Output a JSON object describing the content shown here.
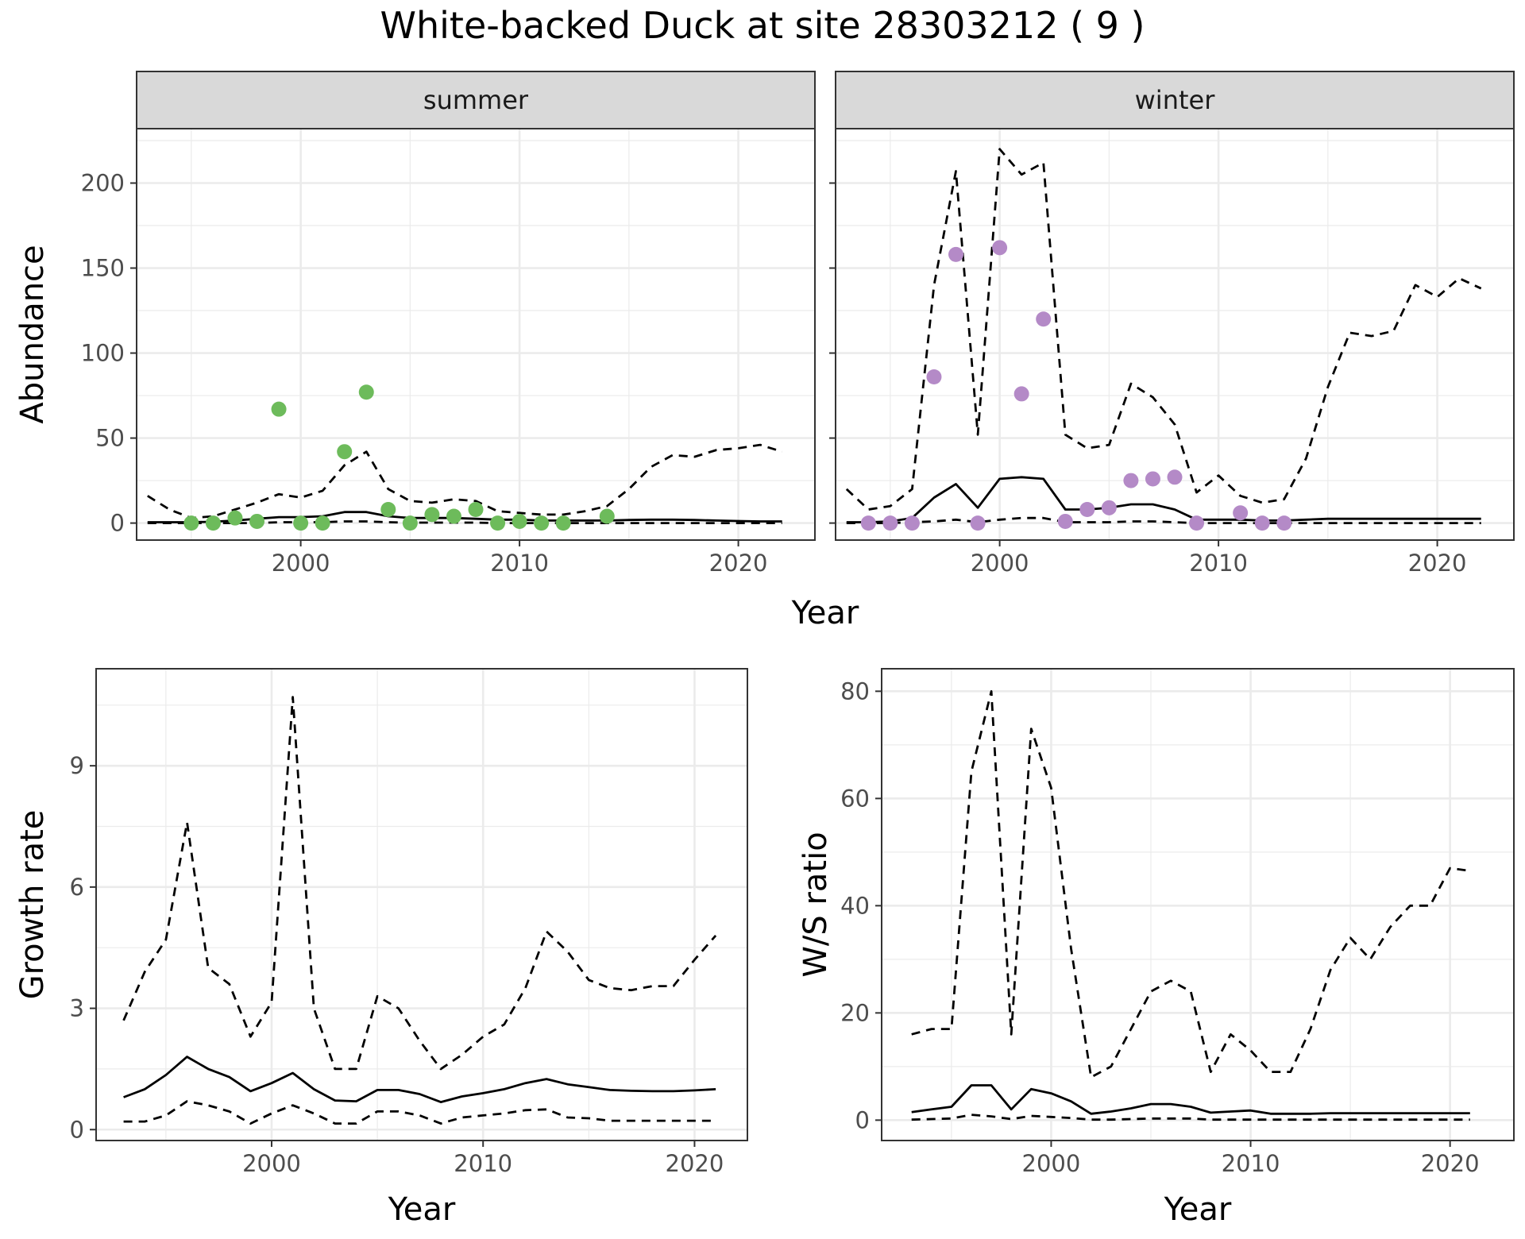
{
  "title": "White-backed Duck at site 28303212 ( 9 )",
  "chart_data": [
    {
      "type": "line",
      "facet": "summer",
      "strip_label": "summer",
      "xlabel": "Year",
      "ylabel": "Abundance",
      "xlim": [
        1992.5,
        2023.5
      ],
      "ylim": [
        -10,
        232
      ],
      "xticks": [
        2000,
        2010,
        2020
      ],
      "yticks": [
        0,
        50,
        100,
        150,
        200
      ],
      "grid": true,
      "legend": "none",
      "point_color": "#6dbb5b",
      "x": [
        1993,
        1994,
        1995,
        1996,
        1997,
        1998,
        1999,
        2000,
        2001,
        2002,
        2003,
        2004,
        2005,
        2006,
        2007,
        2008,
        2009,
        2010,
        2011,
        2012,
        2013,
        2014,
        2015,
        2016,
        2017,
        2018,
        2019,
        2020,
        2021,
        2022
      ],
      "series": [
        {
          "role": "estimate",
          "style": "solid",
          "values": [
            0.5,
            0.5,
            0.5,
            0.8,
            1.5,
            2.5,
            3.5,
            3.5,
            4,
            6.5,
            6.5,
            4,
            3,
            3,
            3,
            2.5,
            2,
            2,
            1.5,
            1.5,
            1.5,
            1.5,
            1.8,
            2,
            2,
            1.8,
            1.5,
            1.2,
            1,
            1
          ]
        },
        {
          "role": "upper",
          "style": "dashed",
          "values": [
            16,
            8,
            3,
            4,
            8,
            12,
            17,
            15,
            19,
            34,
            42,
            20,
            13,
            12,
            14,
            13,
            7,
            6,
            5,
            5,
            7,
            10,
            20,
            33,
            40,
            39,
            43,
            44,
            46,
            42
          ]
        },
        {
          "role": "lower",
          "style": "dashed",
          "values": [
            0,
            0,
            0,
            0,
            0,
            0,
            0.5,
            0.5,
            0.5,
            1,
            1,
            0.5,
            0.3,
            0.3,
            0.3,
            0.3,
            0,
            0,
            0,
            0,
            0,
            0,
            0,
            0,
            0,
            0,
            0,
            0,
            0,
            0
          ]
        }
      ],
      "points": {
        "x": [
          1995,
          1996,
          1997,
          1998,
          1999,
          2000,
          2001,
          2002,
          2003,
          2004,
          2005,
          2006,
          2007,
          2008,
          2009,
          2010,
          2011,
          2012,
          2014
        ],
        "y": [
          0,
          0,
          3,
          1,
          67,
          0,
          0,
          42,
          77,
          8,
          0,
          5,
          4,
          8,
          0,
          1,
          0,
          0,
          4
        ]
      }
    },
    {
      "type": "line",
      "facet": "winter",
      "strip_label": "winter",
      "xlabel": "Year",
      "ylabel": "Abundance",
      "xlim": [
        1992.5,
        2023.5
      ],
      "ylim": [
        -10,
        232
      ],
      "xticks": [
        2000,
        2010,
        2020
      ],
      "yticks": [
        0,
        50,
        100,
        150,
        200
      ],
      "grid": true,
      "legend": "none",
      "point_color": "#b48ac7",
      "x": [
        1993,
        1994,
        1995,
        1996,
        1997,
        1998,
        1999,
        2000,
        2001,
        2002,
        2003,
        2004,
        2005,
        2006,
        2007,
        2008,
        2009,
        2010,
        2011,
        2012,
        2013,
        2014,
        2015,
        2016,
        2017,
        2018,
        2019,
        2020,
        2021,
        2022
      ],
      "series": [
        {
          "role": "estimate",
          "style": "solid",
          "values": [
            0.5,
            0.5,
            1,
            3,
            15,
            23,
            9,
            26,
            27,
            26,
            8,
            8,
            9,
            11,
            11,
            8,
            2,
            2,
            2,
            1.5,
            1.5,
            2,
            2.5,
            2.5,
            2.5,
            2.5,
            2.5,
            2.5,
            2.5,
            2.5
          ]
        },
        {
          "role": "upper",
          "style": "dashed",
          "values": [
            20,
            8,
            10,
            20,
            140,
            207,
            52,
            220,
            205,
            212,
            52,
            44,
            46,
            82,
            74,
            58,
            18,
            28,
            16,
            12,
            14,
            38,
            80,
            112,
            110,
            113,
            140,
            133,
            144,
            138
          ]
        },
        {
          "role": "lower",
          "style": "dashed",
          "values": [
            0,
            0,
            0,
            0.5,
            1,
            2,
            0.5,
            2,
            3,
            3,
            0.5,
            0.5,
            0.5,
            1,
            1,
            0.5,
            0,
            0,
            0,
            0,
            0,
            0,
            0,
            0,
            0,
            0,
            0,
            0,
            0,
            0
          ]
        }
      ],
      "points": {
        "x": [
          1994,
          1995,
          1996,
          1997,
          1998,
          1999,
          2000,
          2001,
          2002,
          2003,
          2004,
          2005,
          2006,
          2007,
          2008,
          2009,
          2011,
          2012,
          2013
        ],
        "y": [
          0,
          0,
          0,
          86,
          158,
          0,
          162,
          76,
          120,
          1,
          8,
          9,
          25,
          26,
          27,
          0,
          6,
          0,
          0
        ]
      }
    },
    {
      "type": "line",
      "xlabel": "Year",
      "ylabel": "Growth rate",
      "xlim": [
        1991.7,
        2022.5
      ],
      "ylim": [
        -0.27,
        11.4
      ],
      "xticks": [
        2000,
        2010,
        2020
      ],
      "yticks": [
        0,
        3,
        6,
        9
      ],
      "grid": true,
      "legend": "none",
      "x": [
        1993,
        1994,
        1995,
        1996,
        1997,
        1998,
        1999,
        2000,
        2001,
        2002,
        2003,
        2004,
        2005,
        2006,
        2007,
        2008,
        2009,
        2010,
        2011,
        2012,
        2013,
        2014,
        2015,
        2016,
        2017,
        2018,
        2019,
        2020,
        2021
      ],
      "series": [
        {
          "role": "estimate",
          "style": "solid",
          "values": [
            0.8,
            1.0,
            1.35,
            1.8,
            1.5,
            1.3,
            0.95,
            1.15,
            1.4,
            1.0,
            0.72,
            0.7,
            0.98,
            0.98,
            0.88,
            0.68,
            0.82,
            0.9,
            1.0,
            1.15,
            1.25,
            1.12,
            1.05,
            0.98,
            0.96,
            0.95,
            0.95,
            0.97,
            1.0
          ]
        },
        {
          "role": "upper",
          "style": "dashed",
          "values": [
            2.7,
            3.9,
            4.7,
            7.6,
            4.0,
            3.6,
            2.3,
            3.15,
            10.7,
            3.0,
            1.5,
            1.5,
            3.3,
            3.0,
            2.2,
            1.5,
            1.85,
            2.3,
            2.6,
            3.5,
            4.9,
            4.4,
            3.7,
            3.5,
            3.45,
            3.55,
            3.55,
            4.2,
            4.8
          ]
        },
        {
          "role": "lower",
          "style": "dashed",
          "values": [
            0.2,
            0.2,
            0.35,
            0.7,
            0.6,
            0.45,
            0.15,
            0.4,
            0.6,
            0.4,
            0.15,
            0.15,
            0.45,
            0.45,
            0.35,
            0.15,
            0.3,
            0.35,
            0.4,
            0.48,
            0.5,
            0.3,
            0.28,
            0.22,
            0.22,
            0.22,
            0.22,
            0.22,
            0.22
          ]
        }
      ]
    },
    {
      "type": "line",
      "xlabel": "Year",
      "ylabel": "W/S ratio",
      "xlim": [
        1991.5,
        2023.2
      ],
      "ylim": [
        -3.8,
        84.2
      ],
      "xticks": [
        2000,
        2010,
        2020
      ],
      "yticks": [
        0,
        20,
        40,
        60,
        80
      ],
      "grid": true,
      "legend": "none",
      "x": [
        1993,
        1994,
        1995,
        1996,
        1997,
        1998,
        1999,
        2000,
        2001,
        2002,
        2003,
        2004,
        2005,
        2006,
        2007,
        2008,
        2009,
        2010,
        2011,
        2012,
        2013,
        2014,
        2015,
        2016,
        2017,
        2018,
        2019,
        2020,
        2021
      ],
      "series": [
        {
          "role": "estimate",
          "style": "solid",
          "values": [
            1.5,
            2,
            2.5,
            6.5,
            6.5,
            2,
            5.8,
            5,
            3.5,
            1.2,
            1.6,
            2.2,
            3,
            3,
            2.5,
            1.4,
            1.6,
            1.8,
            1.2,
            1.2,
            1.2,
            1.3,
            1.3,
            1.3,
            1.3,
            1.3,
            1.3,
            1.3,
            1.3
          ]
        },
        {
          "role": "upper",
          "style": "dashed",
          "values": [
            16,
            17,
            17,
            65,
            80,
            16,
            73,
            62,
            32,
            8,
            10,
            17,
            24,
            26,
            24,
            9,
            16,
            13,
            9,
            9,
            17,
            28,
            34,
            30,
            36,
            40,
            40,
            47,
            46.5
          ]
        },
        {
          "role": "lower",
          "style": "dashed",
          "values": [
            0.1,
            0.2,
            0.3,
            1,
            0.7,
            0.2,
            0.8,
            0.6,
            0.4,
            0.1,
            0.1,
            0.2,
            0.3,
            0.3,
            0.3,
            0.1,
            0.1,
            0.1,
            0.1,
            0.1,
            0.1,
            0.1,
            0.1,
            0.1,
            0.1,
            0.1,
            0.1,
            0.1,
            0.1
          ]
        }
      ]
    }
  ]
}
